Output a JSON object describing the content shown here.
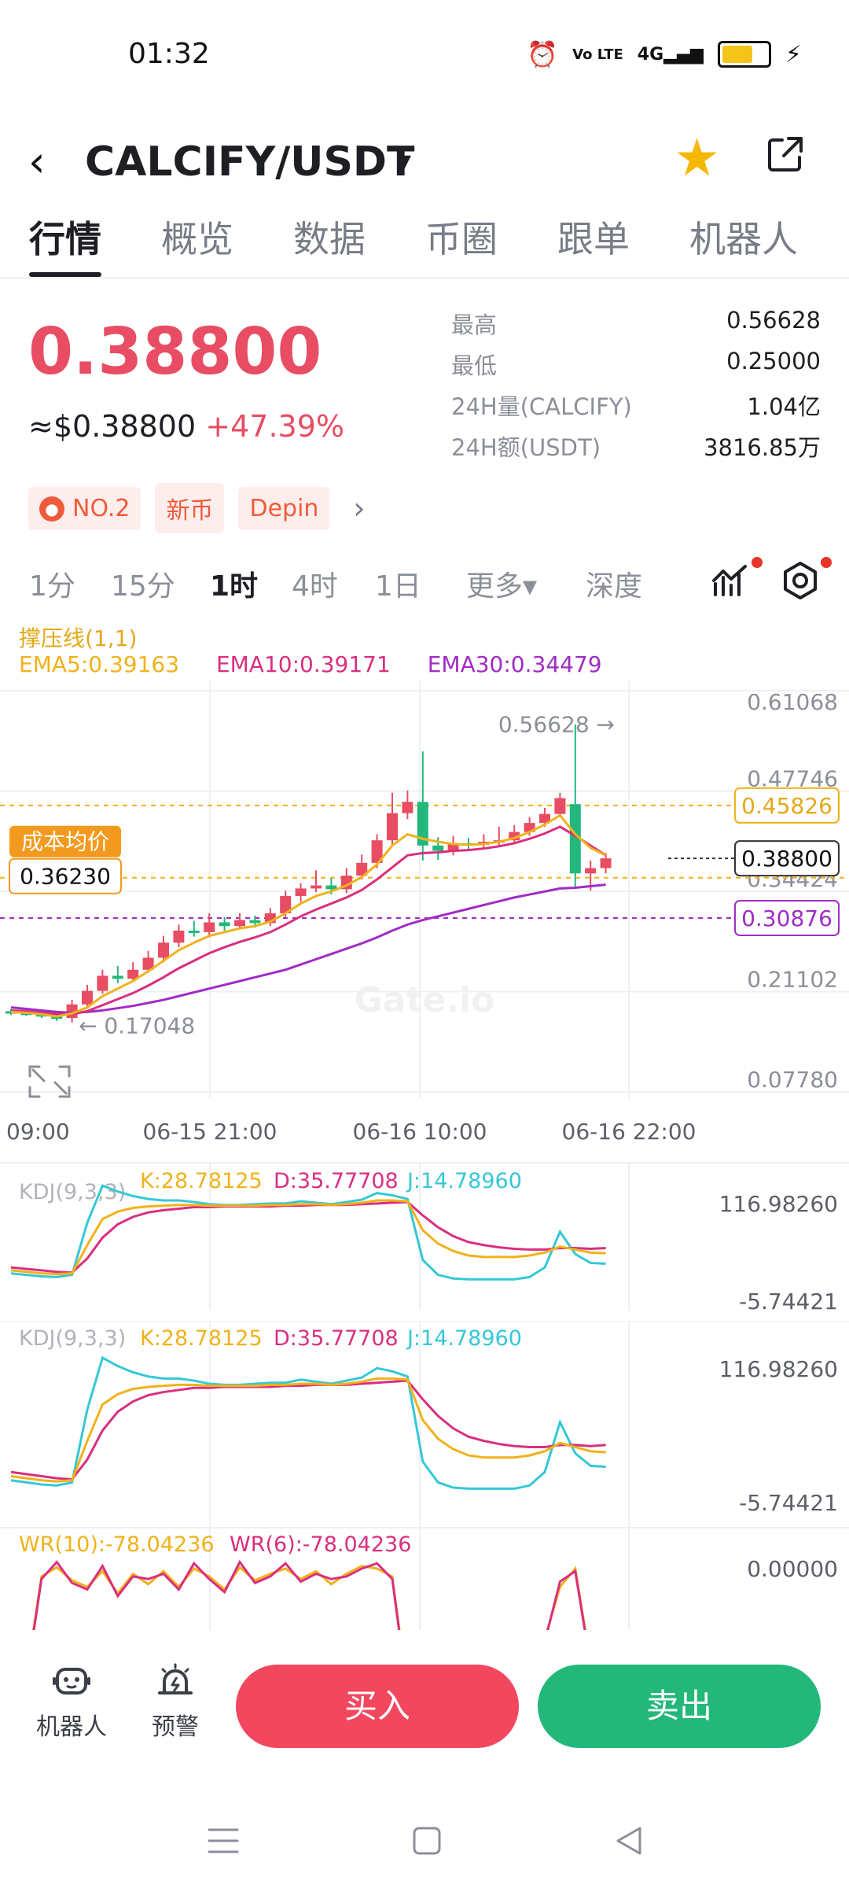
{
  "status_bar": {
    "time": "01:32",
    "network_label": "Vo LTE",
    "signal_label": "4G"
  },
  "header": {
    "pair": "CALCIFY/USDT",
    "caret": "▾",
    "back_icon": "‹",
    "favorite": true
  },
  "tabs": [
    {
      "label": "行情",
      "active": true
    },
    {
      "label": "概览"
    },
    {
      "label": "数据"
    },
    {
      "label": "币圈"
    },
    {
      "label": "跟单"
    },
    {
      "label": "机器人"
    }
  ],
  "ticker": {
    "price": "0.38800",
    "usd_price": "≈$0.38800",
    "change_pct": "+47.39%",
    "stats": [
      {
        "label": "最高",
        "value": "0.56628"
      },
      {
        "label": "最低",
        "value": "0.25000"
      },
      {
        "label": "24H量(CALCIFY)",
        "value": "1.04亿"
      },
      {
        "label": "24H额(USDT)",
        "value": "3816.85万"
      }
    ],
    "tags": [
      "NO.2",
      "新币",
      "Depin"
    ],
    "tag_icon": "fire-icon"
  },
  "intervals": {
    "items": [
      "1分",
      "15分",
      "1时",
      "4时",
      "1日",
      "更多▾",
      "深度"
    ],
    "active": "1时"
  },
  "indicator": {
    "title": "撑压线(1,1)",
    "ema5": "EMA5:0.39163",
    "ema10": "EMA10:0.39171",
    "ema30": "EMA30:0.34479"
  },
  "colors": {
    "up": "#e84d63",
    "down": "#22b77c",
    "ema5": "#f0b21b",
    "ema10": "#d92f7f",
    "ema30": "#a02cc4",
    "kdj_j": "#35c8d6"
  },
  "chart_data": {
    "type": "candlestick",
    "y_ticks": [
      "0.61068",
      "0.47746",
      "0.34424",
      "0.21102",
      "0.07780"
    ],
    "ylim": [
      0.0778,
      0.61068
    ],
    "x_ticks": [
      "09:00",
      "06-15 21:00",
      "06-16 10:00",
      "06-16 22:00"
    ],
    "high_marker": "0.56628 →",
    "low_marker": "← 0.17048",
    "resistance_label": "0.45826",
    "resistance": 0.45826,
    "support_label": "0.30876",
    "support": 0.30876,
    "last_label": "0.38800",
    "last": 0.388,
    "cost_label_title": "成本均价",
    "cost_label_value": "0.36230",
    "cost": 0.3623,
    "candles": [
      [
        0.185,
        0.183,
        0.188,
        0.18
      ],
      [
        0.183,
        0.181,
        0.186,
        0.179
      ],
      [
        0.181,
        0.178,
        0.184,
        0.176
      ],
      [
        0.178,
        0.175,
        0.181,
        0.172
      ],
      [
        0.176,
        0.194,
        0.2,
        0.17
      ],
      [
        0.194,
        0.212,
        0.22,
        0.19
      ],
      [
        0.212,
        0.232,
        0.24,
        0.208
      ],
      [
        0.232,
        0.228,
        0.245,
        0.222
      ],
      [
        0.228,
        0.24,
        0.25,
        0.225
      ],
      [
        0.24,
        0.256,
        0.265,
        0.236
      ],
      [
        0.256,
        0.276,
        0.285,
        0.25
      ],
      [
        0.276,
        0.292,
        0.3,
        0.27
      ],
      [
        0.292,
        0.29,
        0.305,
        0.284
      ],
      [
        0.29,
        0.303,
        0.315,
        0.283
      ],
      [
        0.303,
        0.298,
        0.31,
        0.292
      ],
      [
        0.298,
        0.306,
        0.315,
        0.295
      ],
      [
        0.306,
        0.302,
        0.312,
        0.296
      ],
      [
        0.302,
        0.315,
        0.322,
        0.298
      ],
      [
        0.315,
        0.338,
        0.345,
        0.31
      ],
      [
        0.338,
        0.348,
        0.355,
        0.33
      ],
      [
        0.348,
        0.352,
        0.372,
        0.343
      ],
      [
        0.352,
        0.347,
        0.362,
        0.34
      ],
      [
        0.347,
        0.365,
        0.375,
        0.342
      ],
      [
        0.365,
        0.382,
        0.393,
        0.36
      ],
      [
        0.382,
        0.412,
        0.42,
        0.375
      ],
      [
        0.412,
        0.448,
        0.475,
        0.405
      ],
      [
        0.448,
        0.463,
        0.478,
        0.44
      ],
      [
        0.463,
        0.405,
        0.53,
        0.385
      ],
      [
        0.405,
        0.398,
        0.416,
        0.386
      ],
      [
        0.398,
        0.408,
        0.418,
        0.392
      ],
      [
        0.408,
        0.406,
        0.415,
        0.398
      ],
      [
        0.406,
        0.41,
        0.42,
        0.4
      ],
      [
        0.41,
        0.412,
        0.43,
        0.405
      ],
      [
        0.412,
        0.423,
        0.432,
        0.408
      ],
      [
        0.423,
        0.435,
        0.443,
        0.418
      ],
      [
        0.435,
        0.447,
        0.455,
        0.43
      ],
      [
        0.447,
        0.468,
        0.475,
        0.443
      ],
      [
        0.46,
        0.368,
        0.566,
        0.348
      ],
      [
        0.368,
        0.375,
        0.385,
        0.345
      ],
      [
        0.375,
        0.388,
        0.395,
        0.368
      ]
    ],
    "ema5": [
      0.184,
      0.183,
      0.181,
      0.178,
      0.182,
      0.19,
      0.205,
      0.215,
      0.225,
      0.238,
      0.252,
      0.266,
      0.276,
      0.285,
      0.29,
      0.295,
      0.298,
      0.304,
      0.315,
      0.328,
      0.338,
      0.344,
      0.352,
      0.363,
      0.38,
      0.405,
      0.42,
      0.414,
      0.41,
      0.407,
      0.406,
      0.407,
      0.41,
      0.415,
      0.423,
      0.433,
      0.445,
      0.42,
      0.402,
      0.392
    ],
    "ema10": [
      0.186,
      0.185,
      0.183,
      0.181,
      0.181,
      0.185,
      0.193,
      0.201,
      0.209,
      0.219,
      0.23,
      0.242,
      0.252,
      0.262,
      0.27,
      0.277,
      0.283,
      0.29,
      0.3,
      0.311,
      0.32,
      0.328,
      0.336,
      0.346,
      0.36,
      0.376,
      0.392,
      0.395,
      0.396,
      0.398,
      0.399,
      0.401,
      0.404,
      0.408,
      0.414,
      0.421,
      0.43,
      0.418,
      0.405,
      0.392
    ],
    "ema30": [
      0.19,
      0.188,
      0.186,
      0.184,
      0.183,
      0.184,
      0.186,
      0.189,
      0.192,
      0.196,
      0.2,
      0.205,
      0.21,
      0.215,
      0.22,
      0.225,
      0.23,
      0.235,
      0.24,
      0.247,
      0.254,
      0.261,
      0.268,
      0.275,
      0.283,
      0.292,
      0.3,
      0.306,
      0.311,
      0.316,
      0.321,
      0.326,
      0.331,
      0.336,
      0.34,
      0.344,
      0.348,
      0.349,
      0.351,
      0.353
    ],
    "kdj": {
      "title": "KDJ(9,3,3)",
      "k_label": "K:28.78125",
      "d_label": "D:35.77708",
      "j_label": "J:14.78960",
      "ymax_label": "116.98260",
      "ymin_label": "-5.74421",
      "ylim": [
        -5.74,
        116.98
      ],
      "k": [
        6,
        4,
        2,
        1,
        2,
        40,
        75,
        85,
        90,
        92,
        93,
        94,
        94,
        93,
        93,
        93,
        93,
        94,
        94,
        95,
        95,
        94,
        95,
        97,
        100,
        100,
        99,
        60,
        42,
        32,
        26,
        24,
        24,
        24,
        26,
        30,
        38,
        34,
        30,
        29
      ],
      "d": [
        10,
        8,
        6,
        4,
        3,
        22,
        50,
        68,
        78,
        84,
        87,
        89,
        91,
        91,
        92,
        92,
        92,
        92,
        93,
        93,
        94,
        94,
        94,
        95,
        96,
        97,
        98,
        80,
        64,
        52,
        44,
        40,
        37,
        35,
        34,
        34,
        36,
        36,
        35,
        36
      ],
      "j": [
        2,
        0,
        -2,
        -3,
        0,
        70,
        120,
        112,
        106,
        102,
        100,
        100,
        98,
        95,
        94,
        94,
        95,
        96,
        96,
        99,
        97,
        95,
        98,
        101,
        110,
        107,
        102,
        20,
        0,
        -5,
        -6,
        -6,
        -6,
        -6,
        -3,
        10,
        58,
        28,
        16,
        15
      ]
    },
    "wr": {
      "title_10": "WR(10):-78.04236",
      "title_6": "WR(6):-78.04236",
      "ymax_label": "0.00000",
      "values": [
        -100,
        -90,
        -12,
        -5,
        -15,
        -20,
        -8,
        -25,
        -10,
        -18,
        -8,
        -20,
        -6,
        -12,
        -22,
        -5,
        -15,
        -10,
        -6,
        -14,
        -8,
        -18,
        -10,
        -4,
        -6,
        -12,
        -100,
        -100,
        -100,
        -100,
        -100,
        -100,
        -100,
        -100,
        -100,
        -60,
        -20,
        -6,
        -78,
        -78
      ]
    }
  },
  "bottom_bar": {
    "robot_label": "机器人",
    "alert_label": "预警",
    "buy_label": "买入",
    "sell_label": "卖出"
  }
}
